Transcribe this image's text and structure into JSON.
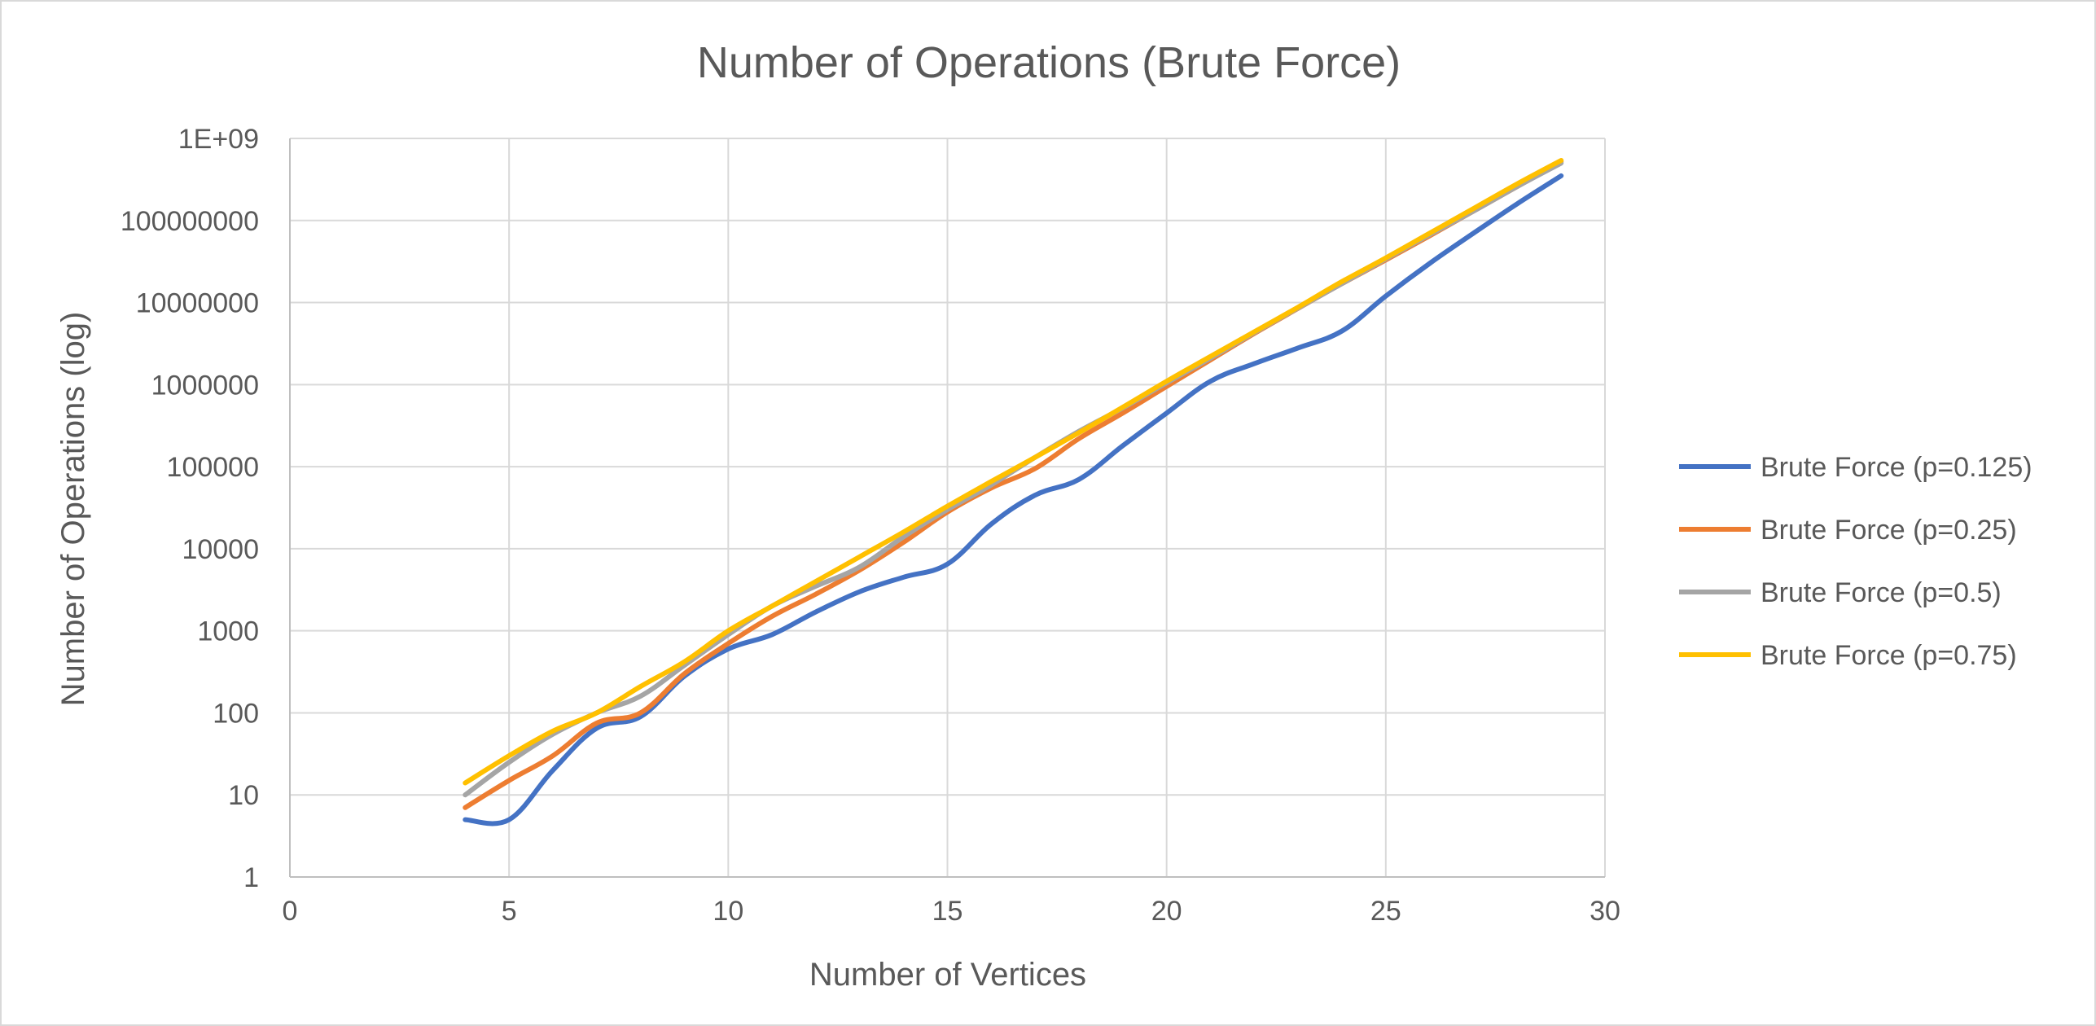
{
  "chart_data": {
    "type": "line",
    "title": "Number of Operations (Brute Force)",
    "xlabel": "Number of Vertices",
    "ylabel": "Number of Operations (log)",
    "xlim": [
      0,
      30
    ],
    "ylim": [
      1,
      1000000000
    ],
    "y_scale": "log",
    "x_ticks": [
      "0",
      "5",
      "10",
      "15",
      "20",
      "25",
      "30"
    ],
    "y_ticks": [
      "1",
      "10",
      "100",
      "1000",
      "10000",
      "100000",
      "1000000",
      "10000000",
      "100000000",
      "1E+09"
    ],
    "grid": true,
    "legend_position": "right",
    "x": [
      4,
      5,
      6,
      7,
      8,
      9,
      10,
      11,
      12,
      13,
      14,
      15,
      16,
      17,
      18,
      19,
      20,
      21,
      22,
      23,
      24,
      25,
      26,
      27,
      28,
      29
    ],
    "series": [
      {
        "name": "Brute Force (p=0.125)",
        "color": "#4472c4",
        "values": [
          5,
          5,
          20,
          65,
          90,
          280,
          600,
          900,
          1700,
          3000,
          4500,
          6500,
          20000,
          45000,
          70000,
          180000,
          450000,
          1100000,
          1800000,
          2800000,
          4500000,
          12000000,
          30000000,
          70000000,
          160000000,
          350000000
        ]
      },
      {
        "name": "Brute Force (p=0.25)",
        "color": "#ed7d31",
        "values": [
          7,
          15,
          30,
          75,
          100,
          300,
          700,
          1500,
          2800,
          5500,
          12000,
          28000,
          55000,
          95000,
          220000,
          450000,
          950000,
          2000000,
          4200000,
          8500000,
          17000000,
          33000000,
          65000000,
          130000000,
          260000000,
          520000000
        ]
      },
      {
        "name": "Brute Force (p=0.5)",
        "color": "#a5a5a5",
        "values": [
          10,
          25,
          55,
          100,
          160,
          380,
          900,
          2000,
          3500,
          6000,
          14000,
          30000,
          60000,
          130000,
          270000,
          520000,
          1050000,
          2100000,
          4300000,
          8600000,
          17000000,
          34000000,
          67000000,
          130000000,
          260000000,
          500000000
        ]
      },
      {
        "name": "Brute Force (p=0.75)",
        "color": "#ffc000",
        "values": [
          14,
          30,
          60,
          100,
          210,
          420,
          1000,
          2000,
          4000,
          8000,
          16000,
          33000,
          66000,
          130000,
          260000,
          530000,
          1100000,
          2200000,
          4400000,
          8800000,
          18000000,
          35000000,
          70000000,
          140000000,
          280000000,
          540000000
        ]
      }
    ]
  }
}
